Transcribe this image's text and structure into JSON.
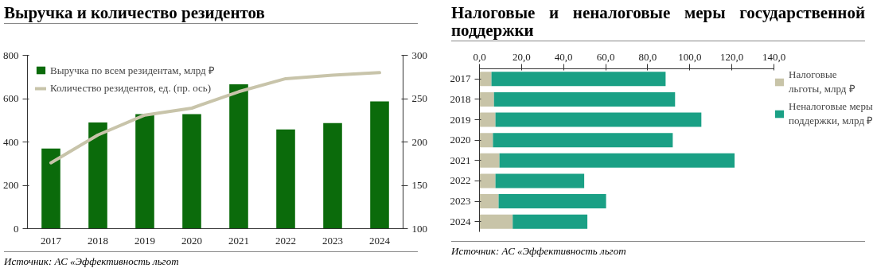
{
  "chart_data": [
    {
      "type": "bar",
      "title": "Выручка и количество резидентов",
      "categories": [
        "2017",
        "2018",
        "2019",
        "2020",
        "2021",
        "2022",
        "2023",
        "2024"
      ],
      "series": [
        {
          "name": "Выручка по всем резидентам, млрд ₽",
          "color": "#0b6b0b",
          "values": [
            370,
            490,
            528,
            528,
            666,
            458,
            487,
            587
          ]
        },
        {
          "name": "Количество резидентов, ед. (пр. ось)",
          "type": "line",
          "axis": "y2",
          "color": "#c8c4aa",
          "values": [
            176,
            208,
            231,
            239,
            258,
            273,
            277,
            280
          ]
        }
      ],
      "ylim": [
        0,
        800
      ],
      "yticks": [
        0,
        200,
        400,
        600,
        800
      ],
      "y2lim": [
        100,
        300
      ],
      "y2ticks": [
        100,
        150,
        200,
        250,
        300
      ],
      "grid": false,
      "legend": "top left",
      "annotations": [
        "Источник: АС «Эффективность льгот"
      ]
    },
    {
      "type": "bar",
      "orientation": "horizontal",
      "stacked": true,
      "title": "Налоговые и неналоговые меры государственной поддержки",
      "categories": [
        "2017",
        "2018",
        "2019",
        "2020",
        "2021",
        "2022",
        "2023",
        "2024"
      ],
      "series": [
        {
          "name": "Налоговые льготы, млрд ₽",
          "color": "#c8c4a8",
          "values": [
            5.7,
            6.9,
            7.6,
            6.4,
            9.5,
            7.6,
            9.1,
            15.8
          ]
        },
        {
          "name": "Неналоговые меры поддержки, млрд ₽",
          "color": "#1aa085",
          "values": [
            82.8,
            86.1,
            97.9,
            85.5,
            111.8,
            42.2,
            51.1,
            35.5
          ]
        }
      ],
      "xlim": [
        0,
        140
      ],
      "xticks": [
        {
          "value": 0,
          "label": "0,0"
        },
        {
          "value": 20,
          "label": "20,0"
        },
        {
          "value": 40,
          "label": "40,0"
        },
        {
          "value": 60,
          "label": "60,0"
        },
        {
          "value": 80,
          "label": "80,0"
        },
        {
          "value": 100,
          "label": "100,0"
        },
        {
          "value": 120,
          "label": "120,0"
        },
        {
          "value": 140,
          "label": "140,0"
        }
      ],
      "grid": false,
      "legend": "right",
      "annotations": [
        "Источник: АС «Эффективность льгот"
      ]
    }
  ]
}
